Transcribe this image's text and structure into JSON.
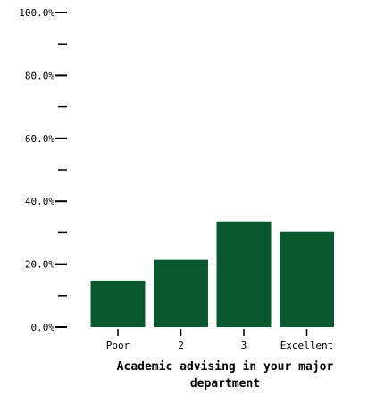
{
  "chart_data": {
    "type": "bar",
    "title": "",
    "xlabel": "Academic advising in your major department",
    "ylabel": "",
    "categories": [
      "Poor",
      "2",
      "3",
      "Excellent"
    ],
    "values": [
      14.8,
      21.4,
      33.6,
      30.2
    ],
    "value_unit": "%",
    "ylim": [
      0,
      100
    ],
    "y_ticks": [
      {
        "value": 0,
        "label": "0.0%"
      },
      {
        "value": 10,
        "label": ""
      },
      {
        "value": 20,
        "label": "20.0%"
      },
      {
        "value": 30,
        "label": ""
      },
      {
        "value": 40,
        "label": "40.0%"
      },
      {
        "value": 50,
        "label": ""
      },
      {
        "value": 60,
        "label": "60.0%"
      },
      {
        "value": 70,
        "label": ""
      },
      {
        "value": 80,
        "label": "80.0%"
      },
      {
        "value": 90,
        "label": ""
      },
      {
        "value": 100,
        "label": "100.0%"
      }
    ],
    "grid": false,
    "legend": "none",
    "bar_color": "#09582f"
  }
}
